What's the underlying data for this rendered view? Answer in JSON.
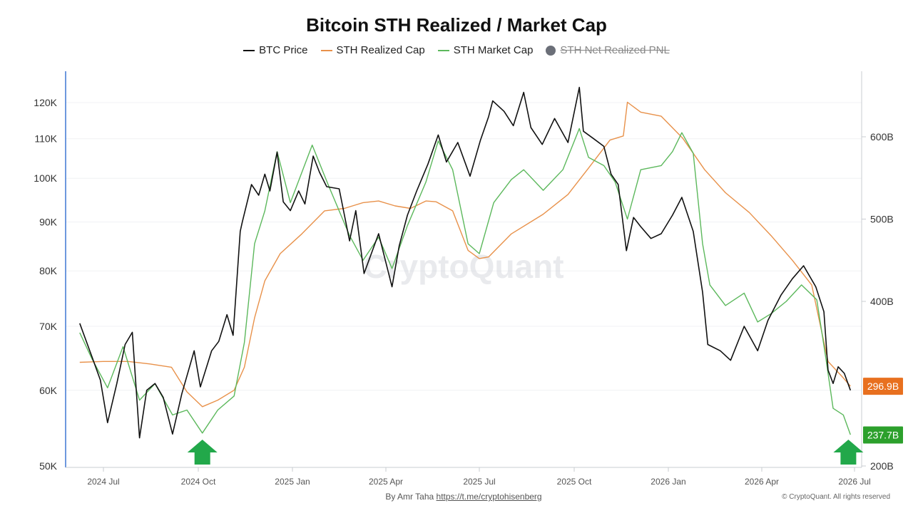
{
  "chart_data": {
    "type": "line",
    "title": "Bitcoin STH Realized / Market Cap",
    "watermark": "CryptoQuant",
    "legend": [
      {
        "name": "BTC Price",
        "color": "#111111",
        "visible": true
      },
      {
        "name": "STH Realized Cap",
        "color": "#e8914a",
        "visible": true
      },
      {
        "name": "STH Market Cap",
        "color": "#5cb85c",
        "visible": true
      },
      {
        "name": "STH Net Realized PNL",
        "color": "#6b6f78",
        "visible": false
      }
    ],
    "x_ticks": [
      "2024 Jul",
      "2024 Oct",
      "2025 Jan",
      "2025 Apr",
      "2025 Jul",
      "2025 Oct",
      "2026 Jan",
      "2026 Apr",
      "2026 Jul"
    ],
    "left_axis": {
      "scale": "log",
      "ticks": [
        "120K",
        "110K",
        "100K",
        "90K",
        "80K",
        "70K",
        "60K",
        "50K"
      ],
      "ylim": [
        50000,
        125000
      ]
    },
    "right_axis": {
      "scale": "linear",
      "ticks": [
        "600B",
        "500B",
        "400B",
        "200B"
      ],
      "ylim": [
        200,
        650
      ]
    },
    "badges": [
      {
        "label": "296.9B",
        "color": "#e8701f"
      },
      {
        "label": "237.7B",
        "color": "#2ca02c"
      }
    ],
    "arrows": [
      {
        "date": "2024-10-05",
        "color": "#22a84a"
      },
      {
        "date": "2026-06-25",
        "color": "#22a84a"
      }
    ],
    "series": [
      {
        "name": "BTC Price",
        "axis": "left",
        "color": "#111111",
        "points": [
          [
            "2024-06-08",
            70500
          ],
          [
            "2024-06-20",
            65000
          ],
          [
            "2024-06-28",
            61500
          ],
          [
            "2024-07-05",
            55500
          ],
          [
            "2024-07-14",
            61000
          ],
          [
            "2024-07-22",
            67000
          ],
          [
            "2024-07-29",
            69000
          ],
          [
            "2024-08-05",
            53500
          ],
          [
            "2024-08-12",
            60000
          ],
          [
            "2024-08-20",
            61000
          ],
          [
            "2024-08-28",
            59000
          ],
          [
            "2024-09-06",
            54000
          ],
          [
            "2024-09-15",
            59500
          ],
          [
            "2024-09-27",
            66000
          ],
          [
            "2024-10-03",
            60500
          ],
          [
            "2024-10-14",
            66000
          ],
          [
            "2024-10-21",
            67500
          ],
          [
            "2024-10-29",
            72000
          ],
          [
            "2024-11-04",
            68500
          ],
          [
            "2024-11-11",
            88000
          ],
          [
            "2024-11-13",
            90000
          ],
          [
            "2024-11-22",
            98500
          ],
          [
            "2024-11-29",
            96000
          ],
          [
            "2024-12-05",
            101000
          ],
          [
            "2024-12-10",
            97000
          ],
          [
            "2024-12-17",
            106500
          ],
          [
            "2024-12-23",
            94500
          ],
          [
            "2024-12-30",
            92500
          ],
          [
            "2025-01-07",
            97000
          ],
          [
            "2025-01-13",
            94000
          ],
          [
            "2025-01-21",
            105500
          ],
          [
            "2025-01-27",
            101500
          ],
          [
            "2025-02-03",
            98000
          ],
          [
            "2025-02-15",
            97500
          ],
          [
            "2025-02-25",
            86000
          ],
          [
            "2025-03-03",
            92500
          ],
          [
            "2025-03-11",
            79500
          ],
          [
            "2025-03-25",
            87500
          ],
          [
            "2025-04-07",
            77000
          ],
          [
            "2025-04-14",
            85000
          ],
          [
            "2025-04-22",
            91500
          ],
          [
            "2025-05-01",
            97000
          ],
          [
            "2025-05-12",
            103500
          ],
          [
            "2025-05-22",
            111000
          ],
          [
            "2025-05-30",
            104000
          ],
          [
            "2025-06-10",
            109000
          ],
          [
            "2025-06-22",
            100500
          ],
          [
            "2025-07-02",
            109500
          ],
          [
            "2025-07-10",
            116000
          ],
          [
            "2025-07-14",
            120500
          ],
          [
            "2025-07-25",
            117500
          ],
          [
            "2025-08-03",
            113500
          ],
          [
            "2025-08-13",
            123000
          ],
          [
            "2025-08-20",
            113000
          ],
          [
            "2025-08-31",
            108500
          ],
          [
            "2025-09-12",
            115500
          ],
          [
            "2025-09-25",
            109000
          ],
          [
            "2025-10-06",
            124500
          ],
          [
            "2025-10-10",
            112000
          ],
          [
            "2025-10-20",
            110000
          ],
          [
            "2025-10-30",
            108000
          ],
          [
            "2025-11-06",
            101000
          ],
          [
            "2025-11-13",
            98500
          ],
          [
            "2025-11-21",
            84000
          ],
          [
            "2025-11-28",
            91000
          ],
          [
            "2025-12-05",
            89000
          ],
          [
            "2025-12-15",
            86500
          ],
          [
            "2025-12-25",
            87500
          ],
          [
            "2026-01-05",
            91500
          ],
          [
            "2026-01-14",
            95500
          ],
          [
            "2026-01-25",
            88000
          ],
          [
            "2026-02-03",
            76000
          ],
          [
            "2026-02-08",
            67000
          ],
          [
            "2026-02-20",
            66000
          ],
          [
            "2026-03-02",
            64500
          ],
          [
            "2026-03-15",
            70000
          ],
          [
            "2026-03-28",
            66000
          ],
          [
            "2026-04-07",
            71000
          ],
          [
            "2026-04-20",
            75500
          ],
          [
            "2026-05-01",
            78500
          ],
          [
            "2026-05-12",
            81000
          ],
          [
            "2026-05-24",
            77000
          ],
          [
            "2026-06-01",
            72500
          ],
          [
            "2026-06-05",
            63000
          ],
          [
            "2026-06-10",
            61000
          ],
          [
            "2026-06-15",
            63500
          ],
          [
            "2026-06-21",
            62500
          ],
          [
            "2026-06-27",
            60000
          ]
        ]
      },
      {
        "name": "STH Realized Cap",
        "axis": "right",
        "color": "#e8914a",
        "points": [
          [
            "2024-06-08",
            326
          ],
          [
            "2024-07-01",
            327
          ],
          [
            "2024-07-25",
            327
          ],
          [
            "2024-08-15",
            324
          ],
          [
            "2024-09-05",
            320
          ],
          [
            "2024-09-20",
            290
          ],
          [
            "2024-10-05",
            272
          ],
          [
            "2024-10-20",
            280
          ],
          [
            "2024-11-05",
            292
          ],
          [
            "2024-11-15",
            320
          ],
          [
            "2024-11-25",
            380
          ],
          [
            "2024-12-05",
            425
          ],
          [
            "2024-12-20",
            458
          ],
          [
            "2025-01-10",
            482
          ],
          [
            "2025-02-01",
            510
          ],
          [
            "2025-02-20",
            513
          ],
          [
            "2025-03-10",
            520
          ],
          [
            "2025-03-25",
            522
          ],
          [
            "2025-04-10",
            516
          ],
          [
            "2025-04-25",
            513
          ],
          [
            "2025-05-10",
            522
          ],
          [
            "2025-05-20",
            521
          ],
          [
            "2025-06-05",
            510
          ],
          [
            "2025-06-20",
            462
          ],
          [
            "2025-07-01",
            452
          ],
          [
            "2025-07-10",
            454
          ],
          [
            "2025-08-01",
            482
          ],
          [
            "2025-09-01",
            506
          ],
          [
            "2025-09-25",
            530
          ],
          [
            "2025-10-15",
            562
          ],
          [
            "2025-11-05",
            596
          ],
          [
            "2025-11-18",
            601
          ],
          [
            "2025-11-22",
            642
          ],
          [
            "2025-12-05",
            630
          ],
          [
            "2025-12-25",
            625
          ],
          [
            "2026-01-15",
            598
          ],
          [
            "2026-02-05",
            560
          ],
          [
            "2026-02-25",
            532
          ],
          [
            "2026-03-20",
            508
          ],
          [
            "2026-04-10",
            480
          ],
          [
            "2026-05-01",
            450
          ],
          [
            "2026-05-20",
            420
          ],
          [
            "2026-06-05",
            327
          ],
          [
            "2026-06-20",
            307
          ],
          [
            "2026-06-27",
            297
          ]
        ]
      },
      {
        "name": "STH Market Cap",
        "axis": "right",
        "color": "#5cb85c",
        "points": [
          [
            "2024-06-08",
            362
          ],
          [
            "2024-06-20",
            330
          ],
          [
            "2024-07-05",
            295
          ],
          [
            "2024-07-20",
            345
          ],
          [
            "2024-08-05",
            280
          ],
          [
            "2024-08-20",
            300
          ],
          [
            "2024-09-06",
            262
          ],
          [
            "2024-09-20",
            268
          ],
          [
            "2024-10-05",
            240
          ],
          [
            "2024-10-20",
            268
          ],
          [
            "2024-11-05",
            285
          ],
          [
            "2024-11-15",
            350
          ],
          [
            "2024-11-25",
            470
          ],
          [
            "2024-12-05",
            510
          ],
          [
            "2024-12-17",
            582
          ],
          [
            "2024-12-30",
            520
          ],
          [
            "2025-01-20",
            590
          ],
          [
            "2025-02-05",
            540
          ],
          [
            "2025-02-25",
            480
          ],
          [
            "2025-03-10",
            450
          ],
          [
            "2025-03-25",
            478
          ],
          [
            "2025-04-07",
            440
          ],
          [
            "2025-04-22",
            492
          ],
          [
            "2025-05-10",
            545
          ],
          [
            "2025-05-22",
            595
          ],
          [
            "2025-06-05",
            560
          ],
          [
            "2025-06-20",
            470
          ],
          [
            "2025-07-01",
            458
          ],
          [
            "2025-07-15",
            520
          ],
          [
            "2025-08-01",
            548
          ],
          [
            "2025-08-13",
            560
          ],
          [
            "2025-09-01",
            535
          ],
          [
            "2025-09-20",
            560
          ],
          [
            "2025-10-06",
            610
          ],
          [
            "2025-10-15",
            575
          ],
          [
            "2025-10-30",
            565
          ],
          [
            "2025-11-10",
            545
          ],
          [
            "2025-11-22",
            500
          ],
          [
            "2025-12-05",
            560
          ],
          [
            "2025-12-25",
            565
          ],
          [
            "2026-01-05",
            582
          ],
          [
            "2026-01-14",
            605
          ],
          [
            "2026-01-25",
            580
          ],
          [
            "2026-02-03",
            470
          ],
          [
            "2026-02-10",
            420
          ],
          [
            "2026-02-25",
            395
          ],
          [
            "2026-03-15",
            410
          ],
          [
            "2026-03-28",
            375
          ],
          [
            "2026-04-10",
            385
          ],
          [
            "2026-04-25",
            400
          ],
          [
            "2026-05-10",
            420
          ],
          [
            "2026-05-25",
            402
          ],
          [
            "2026-06-03",
            330
          ],
          [
            "2026-06-10",
            270
          ],
          [
            "2026-06-20",
            262
          ],
          [
            "2026-06-27",
            238
          ]
        ]
      }
    ]
  },
  "footer": {
    "credit_prefix": "By Amr Taha ",
    "credit_link": "https://t.me/cryptohisenberg",
    "copyright": "© CryptoQuant. All rights reserved"
  }
}
